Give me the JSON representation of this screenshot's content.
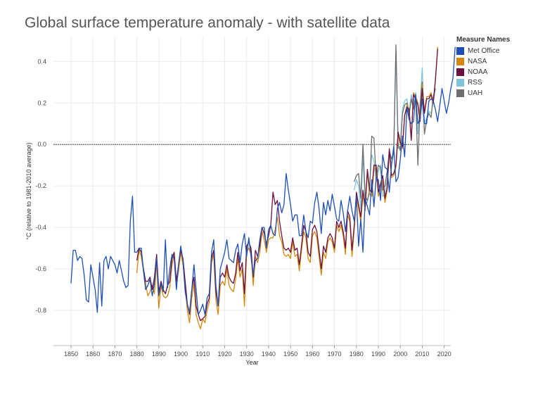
{
  "page": {
    "title": "Global surface temperature anomaly - with satellite data"
  },
  "legend": {
    "title": "Measure Names",
    "items": [
      {
        "label": "Met Office",
        "color": "#1f4fb4"
      },
      {
        "label": "NASA",
        "color": "#d4880f"
      },
      {
        "label": "NOAA",
        "color": "#6b1040"
      },
      {
        "label": "RSS",
        "color": "#7fc5da"
      },
      {
        "label": "UAH",
        "color": "#6d6d6d"
      }
    ]
  },
  "chart_data": {
    "type": "line",
    "title": "Global surface temperature anomaly - with satellite data",
    "xlabel": "Year",
    "ylabel": "°C (relative to 1981-2010 average)",
    "xlim": [
      1842,
      2023
    ],
    "ylim": [
      -0.97,
      0.52
    ],
    "xticks": [
      1850,
      1860,
      1870,
      1880,
      1890,
      1900,
      1910,
      1920,
      1930,
      1940,
      1950,
      1960,
      1970,
      1980,
      1990,
      2000,
      2010,
      2020
    ],
    "yticks": [
      -0.8,
      -0.6,
      -0.4,
      -0.2,
      0.0,
      0.2,
      0.4
    ],
    "ytick_labels": [
      "-0.8",
      "-0.6",
      "-0.4",
      "-0.2",
      "0.0",
      "0.2",
      "0.4"
    ],
    "grid": true,
    "reference_line": 0.0,
    "legend_position": "right",
    "series": [
      {
        "name": "Met Office",
        "color": "#1f4fb4",
        "x_start": 1850,
        "values": [
          -0.67,
          -0.51,
          -0.51,
          -0.56,
          -0.54,
          -0.55,
          -0.63,
          -0.75,
          -0.76,
          -0.58,
          -0.64,
          -0.7,
          -0.81,
          -0.57,
          -0.78,
          -0.56,
          -0.54,
          -0.6,
          -0.54,
          -0.56,
          -0.58,
          -0.62,
          -0.56,
          -0.61,
          -0.66,
          -0.69,
          -0.68,
          -0.37,
          -0.25,
          -0.52,
          -0.52,
          -0.5,
          -0.5,
          -0.61,
          -0.7,
          -0.68,
          -0.65,
          -0.73,
          -0.67,
          -0.55,
          -0.73,
          -0.67,
          -0.71,
          -0.46,
          -0.69,
          -0.6,
          -0.53,
          -0.55,
          -0.7,
          -0.58,
          -0.49,
          -0.56,
          -0.71,
          -0.77,
          -0.81,
          -0.7,
          -0.58,
          -0.7,
          -0.82,
          -0.8,
          -0.77,
          -0.82,
          -0.74,
          -0.72,
          -0.52,
          -0.46,
          -0.68,
          -0.78,
          -0.6,
          -0.56,
          -0.52,
          -0.46,
          -0.55,
          -0.56,
          -0.57,
          -0.51,
          -0.48,
          -0.57,
          -0.48,
          -0.43,
          -0.54,
          -0.45,
          -0.54,
          -0.63,
          -0.56,
          -0.55,
          -0.46,
          -0.4,
          -0.4,
          -0.5,
          -0.41,
          -0.39,
          -0.43,
          -0.44,
          -0.31,
          -0.28,
          -0.33,
          -0.29,
          -0.14,
          -0.22,
          -0.29,
          -0.37,
          -0.34,
          -0.34,
          -0.44,
          -0.44,
          -0.34,
          -0.42,
          -0.45,
          -0.37,
          -0.38,
          -0.28,
          -0.23,
          -0.31,
          -0.43,
          -0.28,
          -0.34,
          -0.27,
          -0.32,
          -0.24,
          -0.3,
          -0.36,
          -0.37,
          -0.27,
          -0.33,
          -0.42,
          -0.32,
          -0.25,
          -0.32,
          -0.37,
          -0.25,
          -0.49,
          -0.36,
          -0.52,
          -0.26,
          -0.3,
          -0.34,
          -0.17,
          -0.3,
          -0.16,
          -0.17,
          -0.27,
          -0.05,
          -0.11,
          -0.12,
          -0.23,
          -0.1,
          -0.01,
          -0.18,
          -0.16,
          -0.07,
          0.04,
          -0.06,
          0.18,
          0.12,
          0.1,
          0.11,
          0.24,
          0.1,
          0.12,
          0.22,
          0.1,
          0.1,
          0.21,
          0.22,
          0.21,
          0.17,
          0.11,
          0.19,
          0.27,
          0.21,
          0.15,
          0.2,
          0.27,
          0.32,
          0.47
        ]
      },
      {
        "name": "NASA",
        "color": "#d4880f",
        "x_start": 1880,
        "values": [
          -0.62,
          -0.51,
          -0.54,
          -0.61,
          -0.67,
          -0.73,
          -0.71,
          -0.68,
          -0.72,
          -0.57,
          -0.79,
          -0.68,
          -0.73,
          -0.74,
          -0.73,
          -0.69,
          -0.58,
          -0.53,
          -0.68,
          -0.61,
          -0.52,
          -0.58,
          -0.69,
          -0.8,
          -0.86,
          -0.74,
          -0.67,
          -0.82,
          -0.86,
          -0.89,
          -0.84,
          -0.86,
          -0.8,
          -0.76,
          -0.57,
          -0.53,
          -0.75,
          -0.82,
          -0.68,
          -0.66,
          -0.68,
          -0.6,
          -0.68,
          -0.7,
          -0.71,
          -0.65,
          -0.55,
          -0.64,
          -0.6,
          -0.78,
          -0.52,
          -0.5,
          -0.53,
          -0.68,
          -0.54,
          -0.57,
          -0.52,
          -0.42,
          -0.46,
          -0.52,
          -0.46,
          -0.45,
          -0.45,
          -0.41,
          -0.35,
          -0.44,
          -0.47,
          -0.53,
          -0.54,
          -0.53,
          -0.55,
          -0.47,
          -0.54,
          -0.53,
          -0.61,
          -0.51,
          -0.42,
          -0.45,
          -0.55,
          -0.57,
          -0.44,
          -0.42,
          -0.45,
          -0.54,
          -0.63,
          -0.52,
          -0.55,
          -0.47,
          -0.45,
          -0.47,
          -0.52,
          -0.39,
          -0.42,
          -0.39,
          -0.44,
          -0.53,
          -0.34,
          -0.37,
          -0.54,
          -0.41,
          -0.25,
          -0.31,
          -0.37,
          -0.24,
          -0.32,
          -0.13,
          -0.24,
          -0.25,
          -0.12,
          -0.11,
          -0.25,
          -0.21,
          -0.17,
          -0.28,
          -0.22,
          -0.03,
          -0.16,
          -0.15,
          -0.11,
          0.05,
          0.0,
          -0.02,
          0.14,
          0.19,
          0.17,
          0.02,
          0.25,
          0.23,
          0.2,
          0.12,
          0.29,
          0.16,
          0.23,
          0.23,
          0.25,
          0.2,
          0.31,
          0.47
        ]
      },
      {
        "name": "NOAA",
        "color": "#6b1040",
        "x_start": 1880,
        "values": [
          -0.56,
          -0.5,
          -0.52,
          -0.6,
          -0.66,
          -0.66,
          -0.64,
          -0.7,
          -0.64,
          -0.53,
          -0.71,
          -0.66,
          -0.7,
          -0.72,
          -0.68,
          -0.66,
          -0.55,
          -0.52,
          -0.66,
          -0.58,
          -0.51,
          -0.55,
          -0.66,
          -0.77,
          -0.82,
          -0.7,
          -0.64,
          -0.78,
          -0.82,
          -0.85,
          -0.84,
          -0.83,
          -0.77,
          -0.74,
          -0.55,
          -0.51,
          -0.71,
          -0.78,
          -0.64,
          -0.62,
          -0.64,
          -0.58,
          -0.64,
          -0.66,
          -0.67,
          -0.62,
          -0.52,
          -0.61,
          -0.57,
          -0.72,
          -0.49,
          -0.47,
          -0.5,
          -0.64,
          -0.51,
          -0.54,
          -0.49,
          -0.4,
          -0.43,
          -0.48,
          -0.44,
          -0.39,
          -0.23,
          -0.29,
          -0.27,
          -0.37,
          -0.44,
          -0.5,
          -0.51,
          -0.5,
          -0.52,
          -0.45,
          -0.51,
          -0.5,
          -0.58,
          -0.49,
          -0.39,
          -0.42,
          -0.52,
          -0.54,
          -0.41,
          -0.39,
          -0.42,
          -0.51,
          -0.6,
          -0.49,
          -0.52,
          -0.45,
          -0.43,
          -0.45,
          -0.5,
          -0.37,
          -0.4,
          -0.37,
          -0.42,
          -0.5,
          -0.32,
          -0.35,
          -0.51,
          -0.39,
          -0.23,
          -0.29,
          -0.35,
          -0.22,
          -0.3,
          -0.12,
          -0.22,
          -0.23,
          -0.1,
          -0.1,
          -0.23,
          -0.19,
          -0.15,
          -0.26,
          -0.21,
          -0.02,
          -0.15,
          -0.14,
          -0.1,
          0.06,
          0.01,
          -0.01,
          0.14,
          0.18,
          0.17,
          0.02,
          0.24,
          0.22,
          0.19,
          0.11,
          0.27,
          0.15,
          0.22,
          0.22,
          0.24,
          0.2,
          0.31,
          0.46
        ]
      },
      {
        "name": "RSS",
        "color": "#7fc5da",
        "x_start": 1979,
        "values": [
          -0.22,
          -0.17,
          -0.2,
          -0.31,
          -0.05,
          -0.28,
          -0.28,
          -0.2,
          -0.05,
          -0.08,
          -0.18,
          -0.13,
          -0.1,
          -0.25,
          -0.24,
          -0.17,
          -0.05,
          -0.09,
          -0.05,
          0.45,
          -0.02,
          -0.01,
          0.17,
          0.21,
          0.22,
          0.15,
          0.24,
          0.19,
          0.25,
          0.05,
          0.19,
          0.37,
          0.1,
          0.13,
          0.16,
          0.15,
          0.2,
          0.27
        ]
      },
      {
        "name": "UAH",
        "color": "#6d6d6d",
        "x_start": 1979,
        "values": [
          -0.18,
          -0.15,
          -0.14,
          -0.26,
          0.0,
          -0.25,
          -0.27,
          -0.23,
          0.04,
          0.03,
          -0.16,
          -0.1,
          -0.11,
          -0.22,
          -0.2,
          -0.13,
          -0.03,
          -0.07,
          -0.04,
          0.48,
          0.0,
          -0.03,
          0.15,
          0.19,
          0.2,
          0.14,
          0.22,
          0.17,
          0.23,
          -0.1,
          0.19,
          0.3,
          0.05,
          0.12,
          0.15,
          0.13,
          0.23,
          0.27
        ]
      }
    ]
  }
}
